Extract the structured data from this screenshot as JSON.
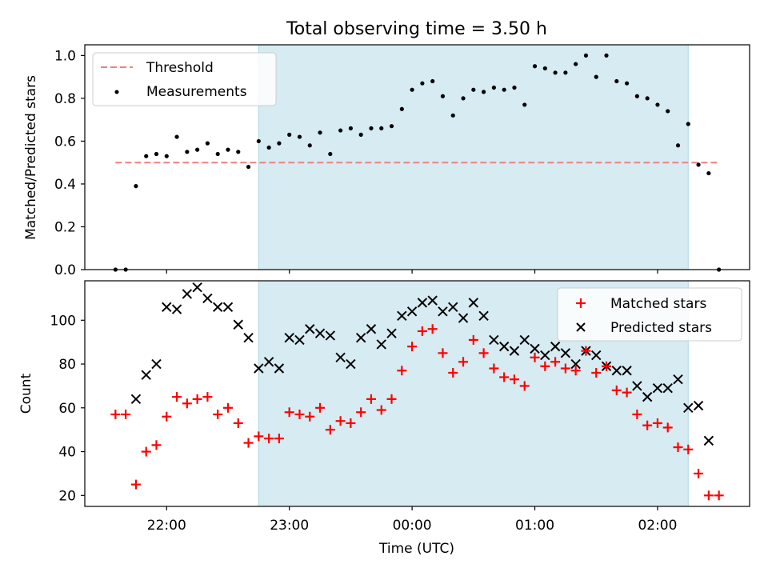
{
  "title": "Total observing time = 3.50 h",
  "colors": {
    "threshold": "#f08080",
    "measurements": "#000000",
    "matched": "#ff0000",
    "predicted": "#000000",
    "span": "#add8e6"
  },
  "chart_data": [
    {
      "type": "scatter",
      "ylabel": "Matched/Predicted stars",
      "ylim": [
        0,
        1.05
      ],
      "yticks": [
        "0.0",
        "0.2",
        "0.4",
        "0.6",
        "0.8",
        "1.0"
      ],
      "xlim": [
        "21:20",
        "02:45"
      ],
      "shaded_span": [
        "22:45",
        "02:15"
      ],
      "grid": false,
      "legend_position": "top-left",
      "threshold": {
        "name": "Threshold",
        "value": 0.5,
        "x_range": [
          "21:35",
          "02:30"
        ]
      },
      "series": [
        {
          "name": "Measurements",
          "x": [
            "21:35",
            "21:40",
            "21:45",
            "21:50",
            "21:55",
            "22:00",
            "22:05",
            "22:10",
            "22:15",
            "22:20",
            "22:25",
            "22:30",
            "22:35",
            "22:40",
            "22:45",
            "22:50",
            "22:55",
            "23:00",
            "23:05",
            "23:10",
            "23:15",
            "23:20",
            "23:25",
            "23:30",
            "23:35",
            "23:40",
            "23:45",
            "23:50",
            "23:55",
            "00:00",
            "00:05",
            "00:10",
            "00:15",
            "00:20",
            "00:25",
            "00:30",
            "00:35",
            "00:40",
            "00:45",
            "00:50",
            "00:55",
            "01:00",
            "01:05",
            "01:10",
            "01:15",
            "01:20",
            "01:25",
            "01:30",
            "01:35",
            "01:40",
            "01:45",
            "01:50",
            "01:55",
            "02:00",
            "02:05",
            "02:10",
            "02:15",
            "02:20",
            "02:25",
            "02:30"
          ],
          "y": [
            0.0,
            0.0,
            0.39,
            0.53,
            0.54,
            0.53,
            0.62,
            0.55,
            0.56,
            0.59,
            0.54,
            0.56,
            0.55,
            0.48,
            0.6,
            0.57,
            0.59,
            0.63,
            0.62,
            0.58,
            0.64,
            0.54,
            0.65,
            0.66,
            0.63,
            0.66,
            0.66,
            0.67,
            0.75,
            0.84,
            0.87,
            0.88,
            0.81,
            0.72,
            0.8,
            0.84,
            0.83,
            0.85,
            0.84,
            0.85,
            0.77,
            0.95,
            0.94,
            0.92,
            0.92,
            0.96,
            1.0,
            0.9,
            1.0,
            0.88,
            0.87,
            0.81,
            0.8,
            0.77,
            0.74,
            0.58,
            0.68,
            0.49,
            0.45,
            0.0
          ]
        }
      ]
    },
    {
      "type": "scatter",
      "xlabel": "Time (UTC)",
      "ylabel": "Count",
      "ylim": [
        15,
        118
      ],
      "yticks": [
        "20",
        "40",
        "60",
        "80",
        "100"
      ],
      "xlim": [
        "21:20",
        "02:45"
      ],
      "xticks": [
        "22:00",
        "23:00",
        "00:00",
        "01:00",
        "02:00"
      ],
      "shaded_span": [
        "22:45",
        "02:15"
      ],
      "grid": false,
      "legend_position": "top-right",
      "x": [
        "21:35",
        "21:40",
        "21:45",
        "21:50",
        "21:55",
        "22:00",
        "22:05",
        "22:10",
        "22:15",
        "22:20",
        "22:25",
        "22:30",
        "22:35",
        "22:40",
        "22:45",
        "22:50",
        "22:55",
        "23:00",
        "23:05",
        "23:10",
        "23:15",
        "23:20",
        "23:25",
        "23:30",
        "23:35",
        "23:40",
        "23:45",
        "23:50",
        "23:55",
        "00:00",
        "00:05",
        "00:10",
        "00:15",
        "00:20",
        "00:25",
        "00:30",
        "00:35",
        "00:40",
        "00:45",
        "00:50",
        "00:55",
        "01:00",
        "01:05",
        "01:10",
        "01:15",
        "01:20",
        "01:25",
        "01:30",
        "01:35",
        "01:40",
        "01:45",
        "01:50",
        "01:55",
        "02:00",
        "02:05",
        "02:10",
        "02:15",
        "02:20",
        "02:25",
        "02:30"
      ],
      "series": [
        {
          "name": "Matched stars",
          "marker": "plus",
          "y": [
            57,
            57,
            25,
            40,
            43,
            56,
            65,
            62,
            64,
            65,
            57,
            60,
            53,
            44,
            47,
            46,
            46,
            58,
            57,
            56,
            60,
            50,
            54,
            53,
            58,
            64,
            59,
            64,
            77,
            88,
            95,
            96,
            85,
            76,
            81,
            91,
            85,
            78,
            74,
            73,
            70,
            83,
            79,
            81,
            78,
            77,
            86,
            76,
            79,
            68,
            67,
            57,
            52,
            53,
            51,
            42,
            41,
            30,
            20,
            20
          ]
        },
        {
          "name": "Predicted stars",
          "marker": "x",
          "y": [
            null,
            null,
            64,
            75,
            80,
            106,
            105,
            112,
            115,
            110,
            106,
            106,
            98,
            92,
            78,
            81,
            78,
            92,
            91,
            96,
            94,
            93,
            83,
            80,
            92,
            96,
            89,
            94,
            102,
            104,
            108,
            109,
            104,
            106,
            101,
            108,
            102,
            91,
            88,
            86,
            91,
            87,
            84,
            88,
            85,
            80,
            86,
            84,
            79,
            77,
            77,
            70,
            65,
            69,
            69,
            73,
            60,
            61,
            45,
            null
          ]
        }
      ]
    }
  ]
}
